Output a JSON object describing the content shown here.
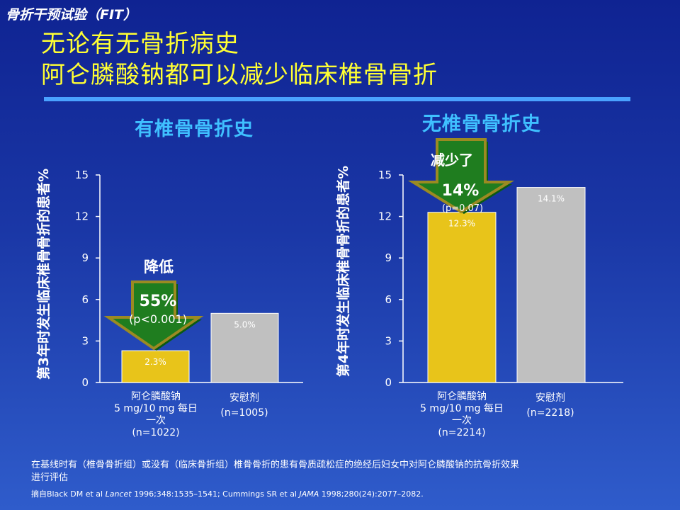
{
  "header": {
    "study": "骨折干预试验（FIT）",
    "title_line1": "无论有无骨折病史",
    "title_line2": "阿仑膦酸钠都可以减少临床椎骨骨折"
  },
  "left_panel": {
    "title": "有椎骨骨折史",
    "ylabel": "第3年时发生临床椎骨骨折的患者%",
    "reduction_label": "降低",
    "reduction_value": "55%",
    "p_value": "(p<0.001)",
    "bar_labels": [
      "2.3%",
      "5.0%"
    ],
    "cat_drug": [
      "阿仑膦酸钠",
      "5 mg/10 mg 每日",
      "一次",
      "(n=1022)"
    ],
    "cat_placebo": [
      "安慰剂",
      "(n=1005)"
    ]
  },
  "right_panel": {
    "title": "无椎骨骨折史",
    "ylabel": "第4年时发生临床椎骨骨折的患者%",
    "reduction_label": "减少了",
    "reduction_value": "14%",
    "p_value": "(p=0.07)",
    "bar_labels": [
      "12.3%",
      "14.1%"
    ],
    "cat_drug": [
      "阿仑膦酸钠",
      "5 mg/10 mg 每日",
      "一次",
      "(n=2214)"
    ],
    "cat_placebo": [
      "安慰剂",
      "(n=2218)"
    ]
  },
  "footer": {
    "line1": "在基线时有（椎骨骨折组）或没有（临床骨折组）椎骨骨折的患有骨质疏松症的绝经后妇女中对阿仑膦酸钠的抗骨折效果",
    "line2": "进行评估",
    "cite_prefix": "摘自Black DM et al ",
    "cite_j1": "Lancet",
    "cite_mid": " 1996;348:1535–1541; Cummings SR et al ",
    "cite_j2": "JAMA",
    "cite_end": " 1998;280(24):2077–2082."
  },
  "colors": {
    "drug": "#e8c41a",
    "placebo": "#c0c0c0",
    "arrow": "#1f7d1f",
    "arrow_edge": "#9b8a22",
    "accent": "#4aa2ff"
  },
  "chart_data": [
    {
      "type": "bar",
      "title": "有椎骨骨折史",
      "ylabel": "第3年时发生临床椎骨骨折的患者%",
      "categories": [
        "阿仑膦酸钠 5 mg/10 mg 每日一次 (n=1022)",
        "安慰剂 (n=1005)"
      ],
      "values": [
        2.3,
        5.0
      ],
      "ylim": [
        0,
        15
      ],
      "yticks": [
        0,
        3,
        6,
        9,
        12,
        15
      ]
    },
    {
      "type": "bar",
      "title": "无椎骨骨折史",
      "ylabel": "第4年时发生临床椎骨骨折的患者%",
      "categories": [
        "阿仑膦酸钠 5 mg/10 mg 每日一次 (n=2214)",
        "安慰剂 (n=2218)"
      ],
      "values": [
        12.3,
        14.1
      ],
      "ylim": [
        0,
        15
      ],
      "yticks": [
        0,
        3,
        6,
        9,
        12,
        15
      ]
    }
  ]
}
